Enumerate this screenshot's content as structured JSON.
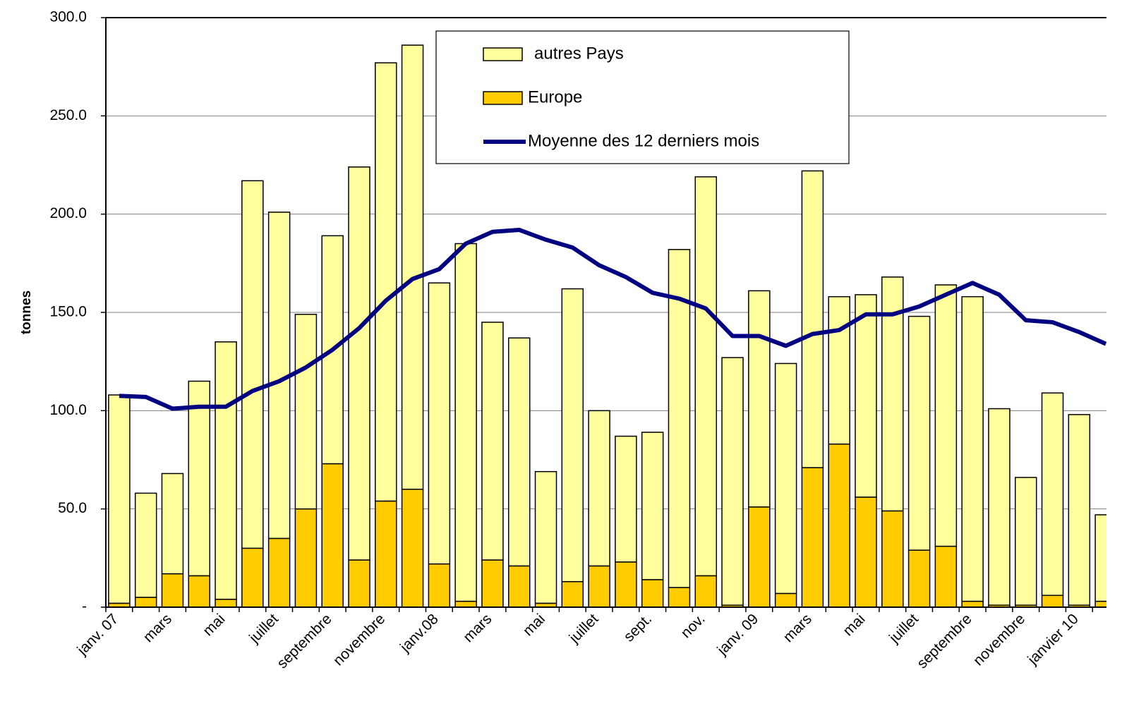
{
  "chart_data": {
    "type": "bar",
    "stacked": true,
    "y_label": "tonnes",
    "categories": [
      "janv. 07",
      null,
      "mars",
      null,
      "mai",
      null,
      "juillet",
      null,
      "septembre",
      null,
      "novembre",
      null,
      "janv.08",
      null,
      "mars",
      null,
      "mai",
      null,
      "juillet",
      null,
      "sept.",
      null,
      "nov.",
      null,
      "janv. 09",
      null,
      "mars",
      null,
      "mai",
      null,
      "juillet",
      null,
      "septembre",
      null,
      "novembre",
      null,
      "janvier 10",
      null
    ],
    "series": [
      {
        "name": "autres Pays",
        "color": "#ffff9e",
        "values": [
          106,
          53,
          51,
          99,
          131,
          187,
          166,
          99,
          116,
          200,
          223,
          226,
          143,
          182,
          121,
          116,
          67,
          149,
          79,
          64,
          75,
          172,
          203,
          126,
          110,
          117,
          151,
          75,
          103,
          119,
          119,
          133,
          155,
          100,
          65,
          103,
          97,
          44
        ]
      },
      {
        "name": "Europe",
        "color": "#ffcc00",
        "values": [
          2,
          5,
          17,
          16,
          4,
          30,
          35,
          50,
          73,
          24,
          54,
          60,
          22,
          3,
          24,
          21,
          2,
          13,
          21,
          23,
          14,
          10,
          16,
          1,
          51,
          7,
          71,
          83,
          56,
          49,
          29,
          31,
          3,
          1,
          1,
          6,
          1,
          3
        ]
      },
      {
        "name": "Moyenne des 12 derniers mois",
        "type": "line",
        "color": "#000080",
        "values": [
          107.5,
          107,
          101,
          102,
          102,
          110,
          115,
          122,
          131,
          142,
          156,
          167,
          172,
          185,
          191,
          192,
          187,
          183,
          174,
          168,
          160,
          157,
          152,
          138,
          138,
          133,
          139,
          141,
          149,
          149,
          153,
          159,
          165,
          159,
          146,
          145,
          140,
          134
        ]
      }
    ],
    "ylim": [
      0,
      300
    ],
    "yticks": [
      {
        "value": 0,
        "label": "-"
      },
      {
        "value": 50,
        "label": "50.0"
      },
      {
        "value": 100,
        "label": "100.0"
      },
      {
        "value": 150,
        "label": "150.0"
      },
      {
        "value": 200,
        "label": "200.0"
      },
      {
        "value": 250,
        "label": "250.0"
      },
      {
        "value": 300,
        "label": "300.0"
      }
    ],
    "grid": true
  }
}
